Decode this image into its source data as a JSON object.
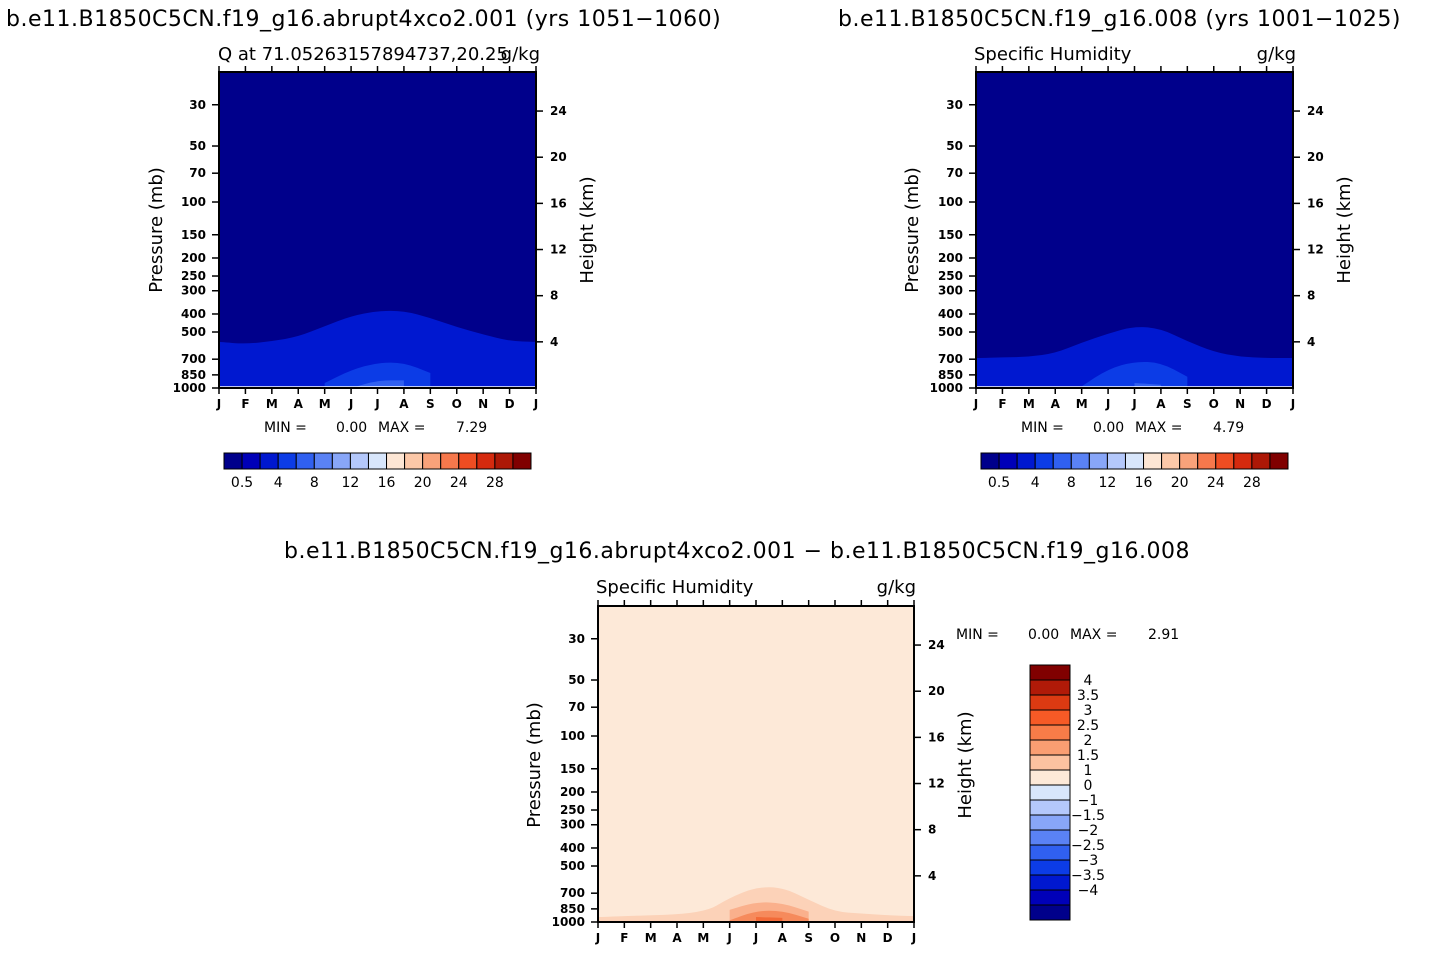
{
  "colors": {
    "seq": [
      "#00008b",
      "#0000b8",
      "#0018d0",
      "#0c3ce6",
      "#3060f0",
      "#5a82f5",
      "#88a6f8",
      "#b4c8fb",
      "#d8e6fb",
      "#fde6d4",
      "#fcc8a8",
      "#f9a27a",
      "#f6784c",
      "#ef4d22",
      "#d52a0e",
      "#ad1806",
      "#800000"
    ],
    "diverge": [
      "#800000",
      "#b01a08",
      "#dc3a12",
      "#f65a26",
      "#f87c48",
      "#fa9e72",
      "#fcc2a0",
      "#fde9d8",
      "#d8e6fb",
      "#b4c8fb",
      "#88a6f8",
      "#5a82f5",
      "#3060f0",
      "#0c3ce6",
      "#0018d0",
      "#0000b8",
      "#00008b"
    ]
  },
  "chart_data": [
    {
      "type": "heatmap",
      "suptitle": "b.e11.B1850C5CN.f19_g16.abrupt4xco2.001 (yrs 1051−1060)",
      "title_left": "Q at 71.05263157894737,20.25",
      "title_right": "g/kg",
      "xlabel": "",
      "ylabel_left": "Pressure (mb)",
      "ylabel_right": "Height (km)",
      "x_ticks": [
        "J",
        "F",
        "M",
        "A",
        "M",
        "J",
        "J",
        "A",
        "S",
        "O",
        "N",
        "D",
        "J"
      ],
      "y_ticks": [
        "30",
        "50",
        "70",
        "100",
        "150",
        "200",
        "250",
        "300",
        "400",
        "500",
        "700",
        "850",
        "1000"
      ],
      "y2_ticks": [
        "24",
        "20",
        "16",
        "12",
        "8",
        "4"
      ],
      "ylim": [
        1000,
        20
      ],
      "stats": {
        "min_label": "MIN =",
        "min": "0.00",
        "max_label": "MAX =",
        "max": "7.29"
      },
      "colorbar_labels": [
        "0.5",
        "4",
        "8",
        "12",
        "16",
        "20",
        "24",
        "28"
      ],
      "levels": [
        0.5,
        2,
        4,
        6
      ],
      "contours": [
        {
          "level": 0.5,
          "top_mb": [
            565,
            580,
            560,
            530,
            465,
            410,
            385,
            385,
            420,
            470,
            515,
            560,
            565
          ]
        },
        {
          "level": 2,
          "top_mb": [
            null,
            null,
            null,
            null,
            940,
            800,
            730,
            730,
            830,
            null,
            null,
            null,
            null
          ]
        },
        {
          "level": 4,
          "top_mb": [
            null,
            null,
            null,
            null,
            null,
            1000,
            910,
            910,
            null,
            null,
            null,
            null,
            null
          ]
        },
        {
          "level": 6,
          "top_mb": [
            null,
            null,
            null,
            null,
            null,
            null,
            1000,
            1000,
            null,
            null,
            null,
            null,
            null
          ]
        }
      ]
    },
    {
      "type": "heatmap",
      "suptitle": "b.e11.B1850C5CN.f19_g16.008 (yrs 1001−1025)",
      "title_left": "Specific Humidity",
      "title_right": "g/kg",
      "xlabel": "",
      "ylabel_left": "Pressure (mb)",
      "ylabel_right": "Height (km)",
      "x_ticks": [
        "J",
        "F",
        "M",
        "A",
        "M",
        "J",
        "J",
        "A",
        "S",
        "O",
        "N",
        "D",
        "J"
      ],
      "y_ticks": [
        "30",
        "50",
        "70",
        "100",
        "150",
        "200",
        "250",
        "300",
        "400",
        "500",
        "700",
        "850",
        "1000"
      ],
      "y2_ticks": [
        "24",
        "20",
        "16",
        "12",
        "8",
        "4"
      ],
      "ylim": [
        1000,
        20
      ],
      "stats": {
        "min_label": "MIN =",
        "min": "0.00",
        "max_label": "MAX =",
        "max": "4.79"
      },
      "colorbar_labels": [
        "0.5",
        "4",
        "8",
        "12",
        "16",
        "20",
        "24",
        "28"
      ],
      "levels": [
        0.5,
        2,
        4
      ],
      "contours": [
        {
          "level": 0.5,
          "top_mb": [
            690,
            685,
            680,
            650,
            570,
            510,
            465,
            480,
            560,
            640,
            680,
            690,
            690
          ]
        },
        {
          "level": 2,
          "top_mb": [
            null,
            null,
            null,
            null,
            980,
            790,
            720,
            730,
            870,
            null,
            null,
            null,
            null
          ]
        },
        {
          "level": 4,
          "top_mb": [
            null,
            null,
            null,
            null,
            null,
            null,
            940,
            960,
            null,
            null,
            null,
            null,
            null
          ]
        }
      ]
    },
    {
      "type": "heatmap",
      "suptitle": "b.e11.B1850C5CN.f19_g16.abrupt4xco2.001 − b.e11.B1850C5CN.f19_g16.008",
      "title_left": "Specific Humidity",
      "title_right": "g/kg",
      "xlabel": "",
      "ylabel_left": "Pressure (mb)",
      "ylabel_right": "Height (km)",
      "x_ticks": [
        "J",
        "F",
        "M",
        "A",
        "M",
        "J",
        "J",
        "A",
        "S",
        "O",
        "N",
        "D",
        "J"
      ],
      "y_ticks": [
        "30",
        "50",
        "70",
        "100",
        "150",
        "200",
        "250",
        "300",
        "400",
        "500",
        "700",
        "850",
        "1000"
      ],
      "y2_ticks": [
        "24",
        "20",
        "16",
        "12",
        "8",
        "4"
      ],
      "ylim": [
        1000,
        20
      ],
      "stats": {
        "min_label": "MIN =",
        "min": "0.00",
        "max_label": "MAX =",
        "max": "2.91"
      },
      "colorbar_labels": [
        "4",
        "3.5",
        "3",
        "2.5",
        "2",
        "1.5",
        "1",
        "0",
        "−1",
        "−1.5",
        "−2",
        "−2.5",
        "−3",
        "−3.5",
        "−4"
      ],
      "levels": [
        1,
        1.5,
        2,
        2.5
      ],
      "contours": [
        {
          "level": 1,
          "top_mb": [
            940,
            930,
            null,
            null,
            900,
            740,
            650,
            650,
            760,
            880,
            900,
            920,
            930
          ]
        },
        {
          "level": 1.5,
          "top_mb": [
            null,
            null,
            null,
            null,
            null,
            860,
            780,
            790,
            880,
            null,
            null,
            null,
            null
          ]
        },
        {
          "level": 2,
          "top_mb": [
            null,
            null,
            null,
            null,
            null,
            980,
            870,
            870,
            960,
            null,
            null,
            null,
            null
          ]
        },
        {
          "level": 2.5,
          "top_mb": [
            null,
            null,
            null,
            null,
            null,
            null,
            940,
            950,
            null,
            null,
            null,
            null,
            null
          ]
        }
      ]
    }
  ]
}
